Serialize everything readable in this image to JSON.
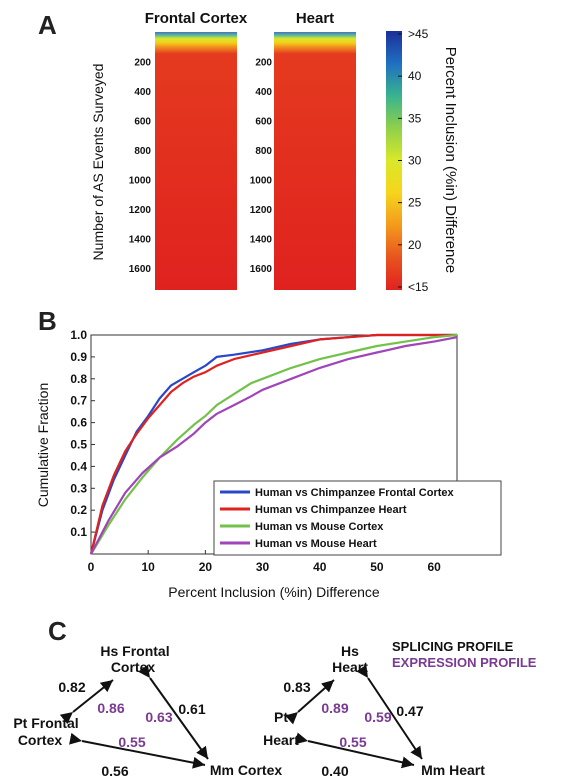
{
  "panels": {
    "a": "A",
    "b": "B",
    "c": "C"
  },
  "chart_data": [
    {
      "type": "heatmap",
      "panel": "A",
      "columns": [
        "Frontal Cortex",
        "Heart"
      ],
      "ylabel": "Number of AS Events Surveyed",
      "yticks": [
        200,
        400,
        600,
        800,
        1000,
        1200,
        1400,
        1600
      ],
      "ylim": [
        0,
        1750
      ],
      "colorbar": {
        "label": "Percent Inclusion (%in) Difference",
        "ticks": [
          "<15",
          "20",
          "25",
          "30",
          "35",
          "40",
          ">45"
        ],
        "tick_values": [
          15,
          20,
          25,
          30,
          35,
          40,
          45
        ],
        "range": [
          15,
          45
        ],
        "colors": [
          "#e0221f",
          "#e8531f",
          "#f39a1c",
          "#f6d51c",
          "#d9e82a",
          "#8fd04a",
          "#39b38f",
          "#1f6fc1",
          "#1c2f98"
        ]
      },
      "first_rows_elevated": 40
    },
    {
      "type": "line",
      "panel": "B",
      "xlabel": "Percent Inclusion (%in) Difference",
      "ylabel": "Cumulative  Fraction",
      "xlim": [
        0,
        64
      ],
      "ylim": [
        0,
        1.0
      ],
      "xticks": [
        0,
        10,
        20,
        30,
        40,
        50,
        60
      ],
      "yticks": [
        0.1,
        0.2,
        0.3,
        0.4,
        0.5,
        0.6,
        0.7,
        0.8,
        0.9,
        1.0
      ],
      "ytick_labels": [
        "0.1",
        "0.2",
        "0.3",
        "0.4",
        "0.5",
        "0.6",
        "0.7",
        "0.8",
        "0.9",
        "1.0"
      ],
      "legend_position": "lower-right",
      "series": [
        {
          "name": "Human vs Chimpanzee Frontal Cortex",
          "color": "#2a47c8",
          "points": [
            [
              0,
              0
            ],
            [
              2,
              0.2
            ],
            [
              4,
              0.34
            ],
            [
              6,
              0.45
            ],
            [
              8,
              0.56
            ],
            [
              10,
              0.63
            ],
            [
              12,
              0.71
            ],
            [
              14,
              0.77
            ],
            [
              16,
              0.8
            ],
            [
              18,
              0.83
            ],
            [
              20,
              0.86
            ],
            [
              22,
              0.9
            ],
            [
              25,
              0.91
            ],
            [
              30,
              0.93
            ],
            [
              35,
              0.96
            ],
            [
              40,
              0.98
            ],
            [
              45,
              0.99
            ],
            [
              50,
              1.0
            ],
            [
              55,
              1.0
            ],
            [
              64,
              1.0
            ]
          ]
        },
        {
          "name": "Human vs Chimpanzee Heart",
          "color": "#e0221f",
          "points": [
            [
              0,
              0
            ],
            [
              2,
              0.22
            ],
            [
              4,
              0.36
            ],
            [
              6,
              0.47
            ],
            [
              8,
              0.55
            ],
            [
              10,
              0.62
            ],
            [
              12,
              0.68
            ],
            [
              14,
              0.74
            ],
            [
              16,
              0.78
            ],
            [
              18,
              0.81
            ],
            [
              20,
              0.83
            ],
            [
              22,
              0.86
            ],
            [
              25,
              0.89
            ],
            [
              30,
              0.92
            ],
            [
              35,
              0.95
            ],
            [
              40,
              0.98
            ],
            [
              45,
              0.99
            ],
            [
              50,
              1.0
            ],
            [
              55,
              1.0
            ],
            [
              64,
              1.0
            ]
          ]
        },
        {
          "name": "Human vs Mouse Cortex",
          "color": "#72c24a",
          "points": [
            [
              0,
              0
            ],
            [
              3,
              0.13
            ],
            [
              6,
              0.25
            ],
            [
              9,
              0.35
            ],
            [
              12,
              0.44
            ],
            [
              15,
              0.52
            ],
            [
              18,
              0.59
            ],
            [
              20,
              0.63
            ],
            [
              22,
              0.68
            ],
            [
              25,
              0.73
            ],
            [
              28,
              0.78
            ],
            [
              30,
              0.8
            ],
            [
              35,
              0.85
            ],
            [
              40,
              0.89
            ],
            [
              45,
              0.92
            ],
            [
              50,
              0.95
            ],
            [
              55,
              0.97
            ],
            [
              60,
              0.99
            ],
            [
              64,
              1.0
            ]
          ]
        },
        {
          "name": "Human vs Mouse Heart",
          "color": "#a045b8",
          "points": [
            [
              0,
              0
            ],
            [
              3,
              0.15
            ],
            [
              6,
              0.28
            ],
            [
              9,
              0.37
            ],
            [
              12,
              0.44
            ],
            [
              15,
              0.49
            ],
            [
              18,
              0.55
            ],
            [
              20,
              0.6
            ],
            [
              22,
              0.64
            ],
            [
              25,
              0.68
            ],
            [
              28,
              0.72
            ],
            [
              30,
              0.75
            ],
            [
              35,
              0.8
            ],
            [
              40,
              0.85
            ],
            [
              45,
              0.89
            ],
            [
              50,
              0.92
            ],
            [
              55,
              0.95
            ],
            [
              60,
              0.97
            ],
            [
              64,
              0.99
            ]
          ]
        }
      ]
    }
  ],
  "panel_c": {
    "legend": {
      "splicing": "SPLICING PROFILE",
      "expression": "EXPRESSION PROFILE"
    },
    "colors": {
      "splicing": "#111111",
      "expression": "#7a3a92"
    },
    "cortex": {
      "hs_line1": "Hs Frontal",
      "hs_line2": "Cortex",
      "pt_line1": "Pt Frontal",
      "pt_line2": "Cortex",
      "mm": "Mm Cortex",
      "hs_pt_splicing": "0.82",
      "hs_pt_expression": "0.86",
      "hs_mm_splicing": "0.61",
      "hs_mm_expression": "0.63",
      "pt_mm_splicing": "0.56",
      "pt_mm_expression": "0.55"
    },
    "heart": {
      "hs_line1": "Hs",
      "hs_line2": "Heart",
      "pt_line1": "Pt",
      "pt_line2": "Heart",
      "mm": "Mm Heart",
      "hs_pt_splicing": "0.83",
      "hs_pt_expression": "0.89",
      "hs_mm_splicing": "0.47",
      "hs_mm_expression": "0.59",
      "pt_mm_splicing": "0.40",
      "pt_mm_expression": "0.55"
    }
  }
}
